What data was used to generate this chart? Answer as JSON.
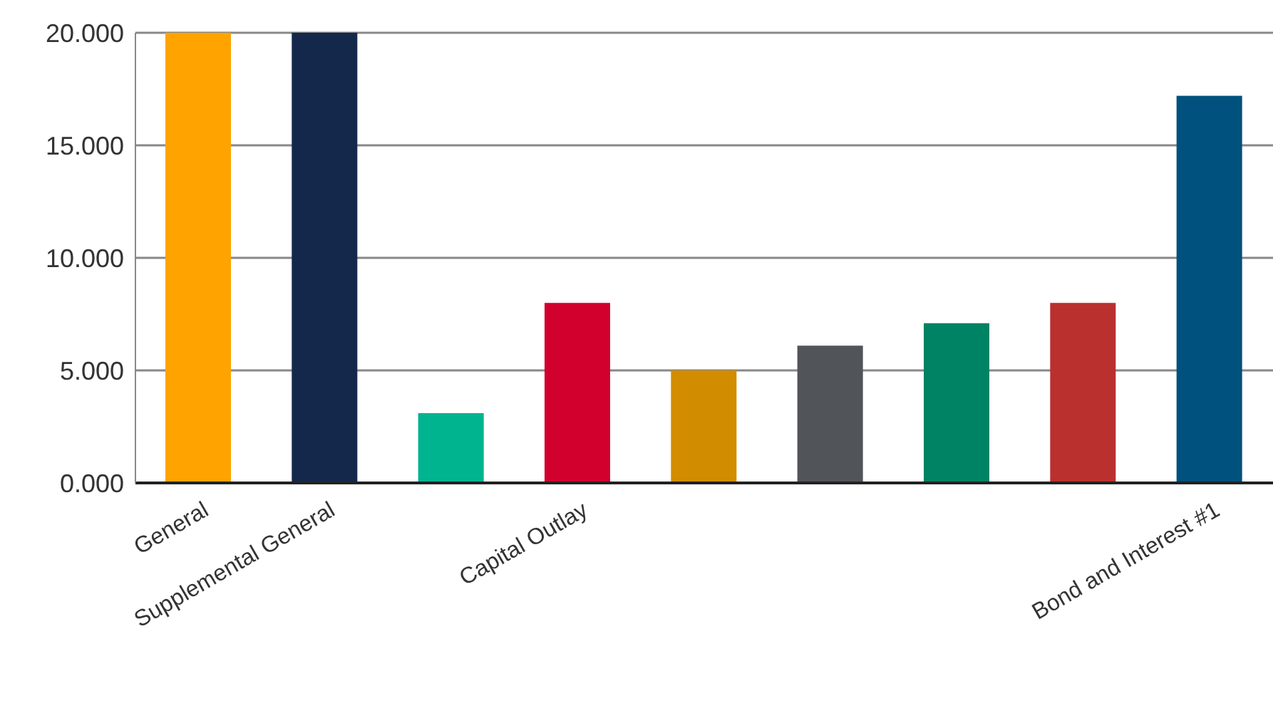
{
  "chart_data": {
    "type": "bar",
    "categories": [
      "General",
      "Supplemental General",
      null,
      "Capital Outlay",
      null,
      null,
      null,
      null,
      "Bond and Interest #1"
    ],
    "values": [
      20,
      20,
      3.1,
      8.0,
      5.0,
      6.1,
      7.1,
      8.0,
      17.2
    ],
    "colors": [
      "#ffa300",
      "#14284b",
      "#00b48f",
      "#d2002d",
      "#d28c00",
      "#515459",
      "#008264",
      "#b9302f",
      "#00517d"
    ],
    "ylim": [
      0,
      20
    ],
    "yticks": [
      {
        "value": 0,
        "label": "0.000"
      },
      {
        "value": 5,
        "label": "5.000"
      },
      {
        "value": 10,
        "label": "10.000"
      },
      {
        "value": 15,
        "label": "15.000"
      },
      {
        "value": 20,
        "label": "20.000"
      }
    ],
    "grid": "y",
    "legend": false
  }
}
